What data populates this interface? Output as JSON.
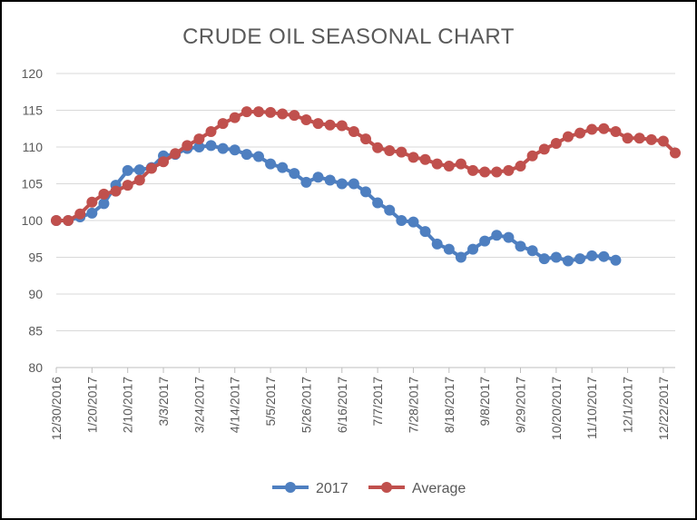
{
  "chart_data": {
    "type": "line",
    "title": "CRUDE OIL SEASONAL CHART",
    "xlabel": "",
    "ylabel": "",
    "ylim": [
      80,
      120
    ],
    "yticks": [
      80,
      85,
      90,
      95,
      100,
      105,
      110,
      115,
      120
    ],
    "x_tick_labels": [
      "12/30/2016",
      "1/20/2017",
      "2/10/2017",
      "3/3/2017",
      "3/24/2017",
      "4/14/2017",
      "5/5/2017",
      "5/26/2017",
      "6/16/2017",
      "7/7/2017",
      "7/28/2017",
      "8/18/2017",
      "9/8/2017",
      "9/29/2017",
      "10/20/2017",
      "11/10/2017",
      "12/1/2017",
      "12/22/2017"
    ],
    "x_interval_days": 7,
    "grid": true,
    "legend_position": "bottom",
    "series": [
      {
        "name": "2017",
        "color": "#4e7fc0",
        "values": [
          100.0,
          100.0,
          100.5,
          101.0,
          102.3,
          104.8,
          106.8,
          106.9,
          107.2,
          108.8,
          109.0,
          109.8,
          110.0,
          110.2,
          109.8,
          109.6,
          109.0,
          108.7,
          107.7,
          107.2,
          106.4,
          105.2,
          105.9,
          105.5,
          105.0,
          105.0,
          103.9,
          102.4,
          101.4,
          100.0,
          99.8,
          98.5,
          96.8,
          96.1,
          95.0,
          96.1,
          97.2,
          98.0,
          97.7,
          96.5,
          95.9,
          94.8,
          95.0,
          94.5,
          94.8,
          95.2,
          95.1,
          94.6
        ]
      },
      {
        "name": "Average",
        "color": "#c0504d",
        "values": [
          100.0,
          100.0,
          100.9,
          102.5,
          103.6,
          104.0,
          104.8,
          105.5,
          107.1,
          108.0,
          109.1,
          110.2,
          111.1,
          112.1,
          113.2,
          114.0,
          114.8,
          114.8,
          114.7,
          114.5,
          114.3,
          113.7,
          113.2,
          113.0,
          112.9,
          112.1,
          111.1,
          109.9,
          109.5,
          109.3,
          108.6,
          108.3,
          107.7,
          107.4,
          107.7,
          106.8,
          106.6,
          106.6,
          106.8,
          107.4,
          108.8,
          109.7,
          110.5,
          111.4,
          111.9,
          112.4,
          112.5,
          112.1,
          111.2,
          111.2,
          111.0,
          110.8,
          109.2
        ]
      }
    ]
  }
}
